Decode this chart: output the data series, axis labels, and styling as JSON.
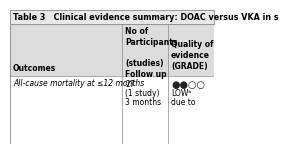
{
  "title": "Table 3   Clinical evidence summary: DOAC versus VKA in s",
  "col1_header": "Outcomes",
  "col2_header": "No of\nParticipants\n\n(studies)\nFollow up",
  "col3_header": "Quality of\nevidence\n(GRADE)",
  "row1_col1": "All-cause mortality at ≤12 months",
  "row1_col2a": "27",
  "row1_col2b": "(1 study)",
  "row1_col2c": "3 months",
  "row1_col3a": "●●○○",
  "row1_col3b": "LOWᵇ",
  "row1_col3c": "due to",
  "bg_header": "#dcdcdc",
  "bg_title": "#c8c8c8",
  "bg_white": "#ffffff",
  "bg_light": "#e8e8e8",
  "border_color": "#888888",
  "title_fontsize": 5.8,
  "header_fontsize": 5.5,
  "cell_fontsize": 5.5
}
